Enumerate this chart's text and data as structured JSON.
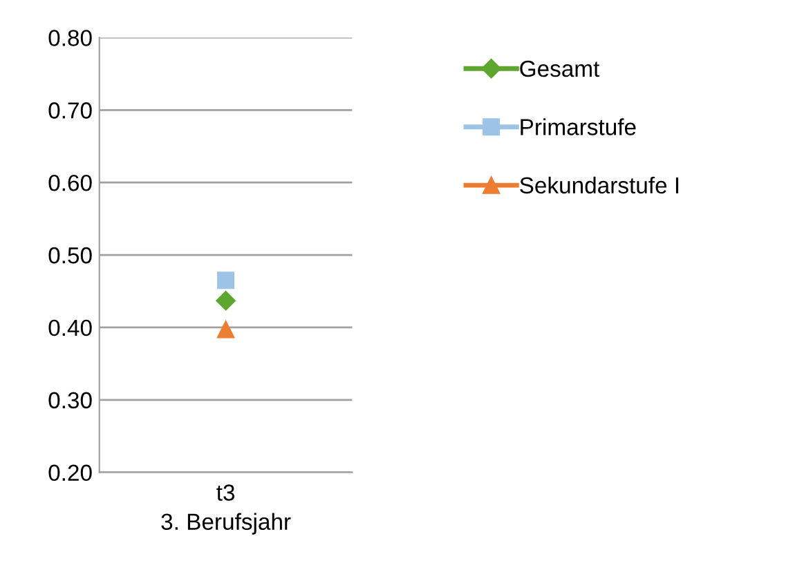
{
  "chart_data": {
    "type": "line",
    "categories": [
      "t3"
    ],
    "xlabel": "3. Berufsjahr",
    "ylim": [
      0.2,
      0.8
    ],
    "yticks": [
      {
        "value": 0.2,
        "label": "0.20"
      },
      {
        "value": 0.3,
        "label": "0.30"
      },
      {
        "value": 0.4,
        "label": "0.40"
      },
      {
        "value": 0.5,
        "label": "0.50"
      },
      {
        "value": 0.6,
        "label": "0.60"
      },
      {
        "value": 0.7,
        "label": "0.70"
      },
      {
        "value": 0.8,
        "label": "0.80"
      }
    ],
    "grid": "y",
    "legend": "right",
    "line_style": "solid",
    "series": [
      {
        "name": "Gesamt",
        "color": "#5ea72e",
        "marker": "diamond",
        "values": [
          0.437
        ]
      },
      {
        "name": "Primarstufe",
        "color": "#9dc3e6",
        "marker": "square",
        "values": [
          0.465
        ]
      },
      {
        "name": "Sekundarstufe I",
        "color": "#ed7d31",
        "marker": "triangle",
        "values": [
          0.397
        ]
      }
    ]
  }
}
